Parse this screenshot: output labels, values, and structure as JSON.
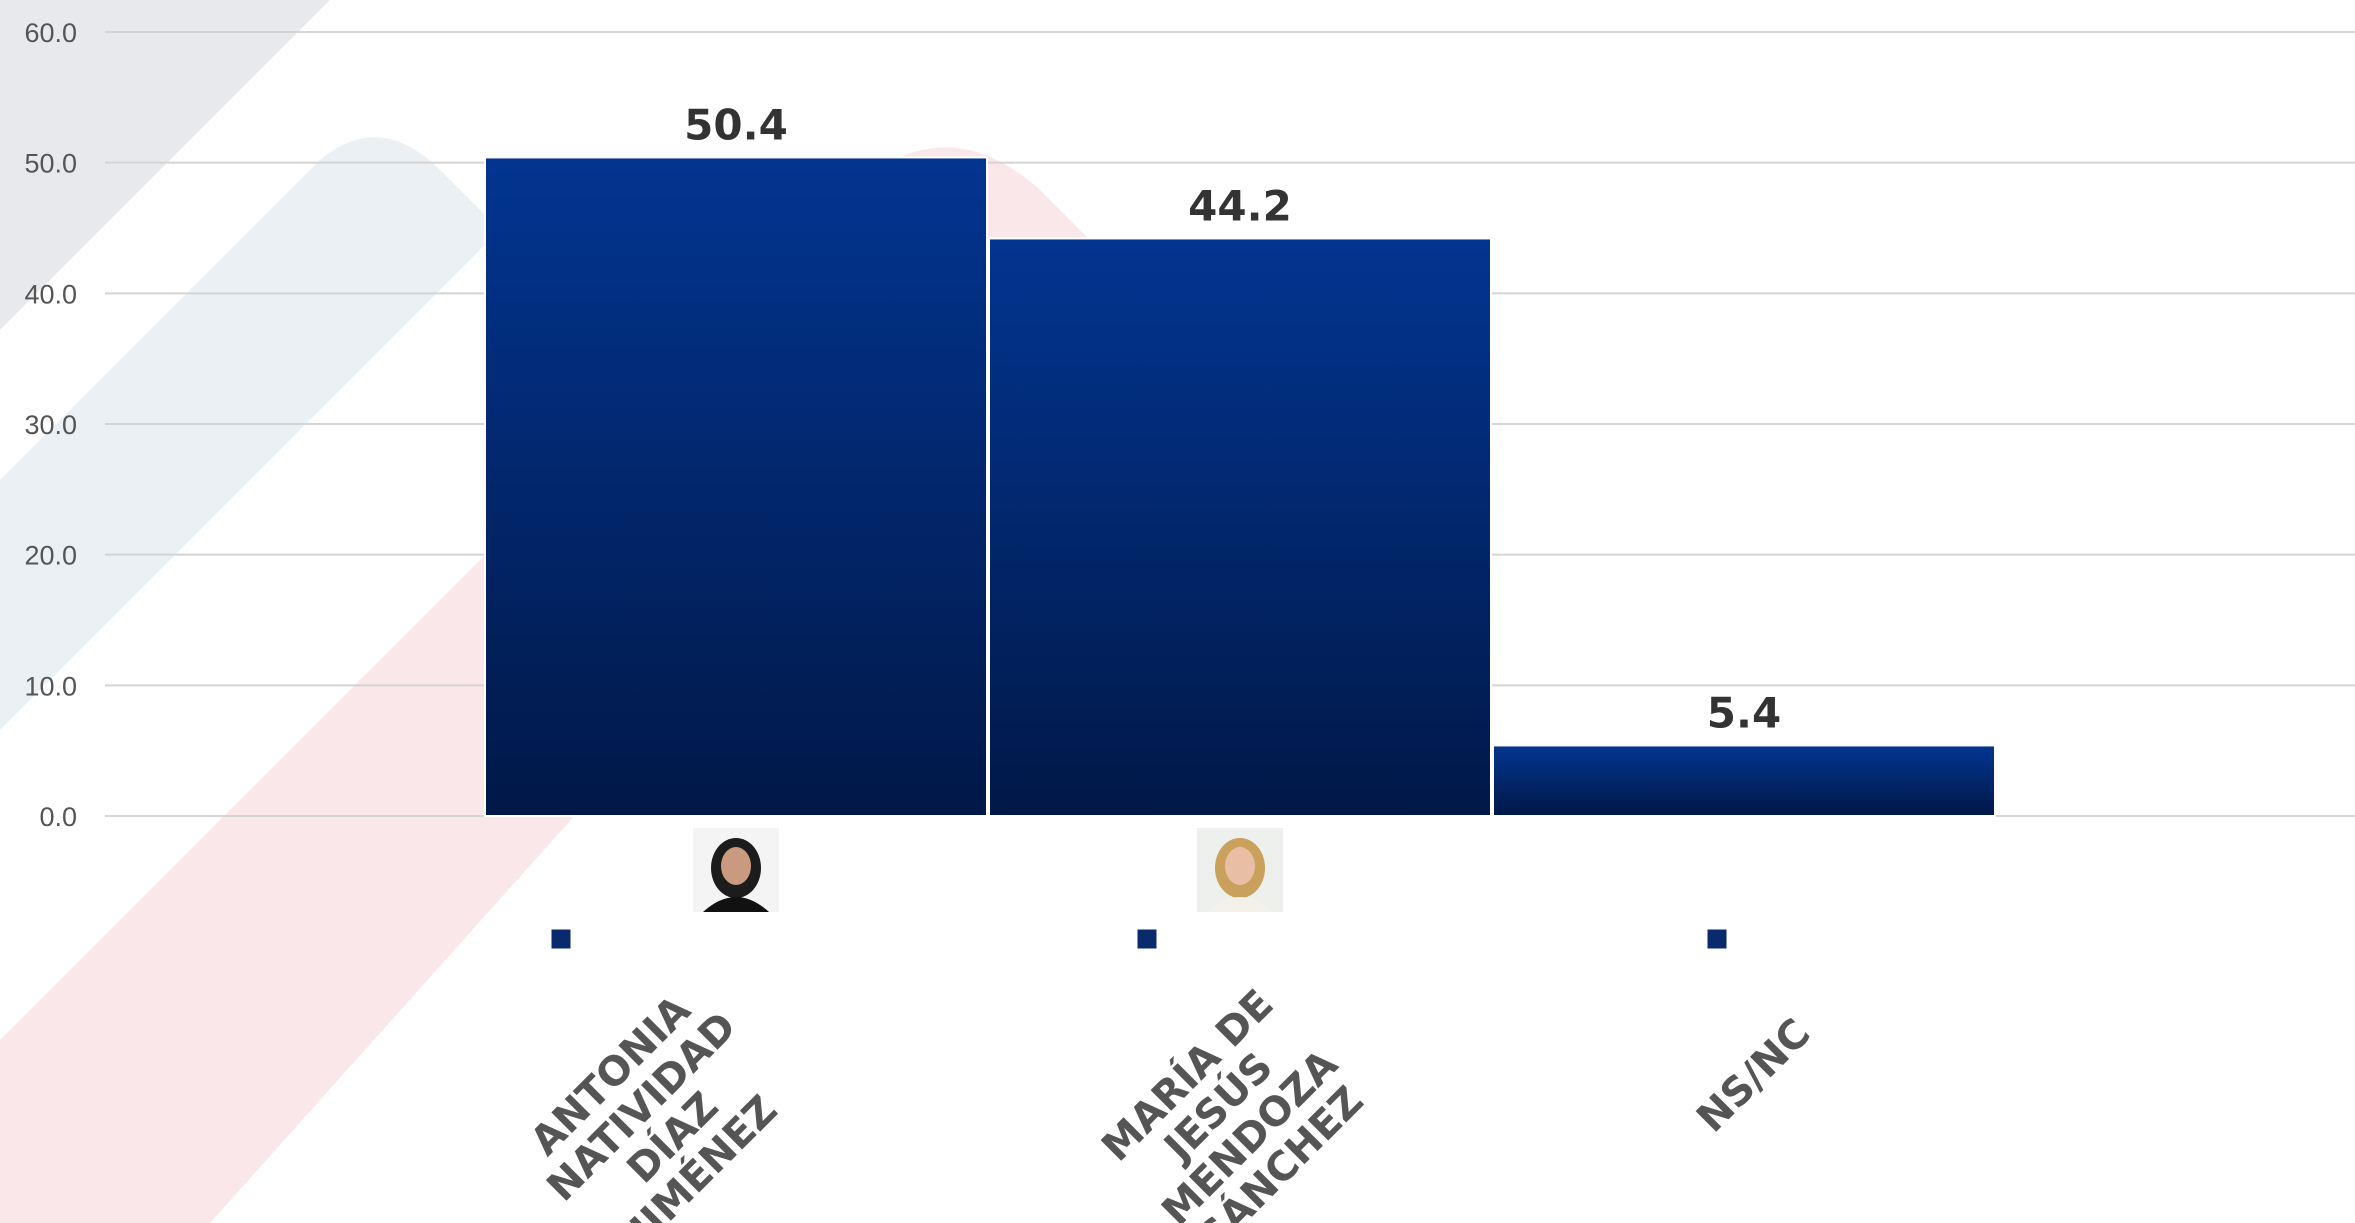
{
  "chart_data": {
    "type": "bar",
    "categories": [
      [
        "ANTONIA",
        "NATIVIDAD",
        "DÍAZ",
        "JIMÉNEZ"
      ],
      [
        "MARÍA DE",
        "JESÚS",
        "MENDOZA",
        "SÁNCHEZ"
      ],
      [
        "NS/NC"
      ]
    ],
    "values": [
      50.4,
      44.2,
      5.4
    ],
    "value_labels": [
      "50.4",
      "44.2",
      "5.4"
    ],
    "candidate_photos": [
      true,
      true,
      false
    ],
    "ylim": [
      0,
      60
    ],
    "yticks": [
      0,
      10,
      20,
      30,
      40,
      50,
      60
    ],
    "ytick_labels": [
      "0.0",
      "10.0",
      "20.0",
      "30.0",
      "40.0",
      "50.0",
      "60.0"
    ],
    "grid": true,
    "colors": {
      "bar_top": "#023591",
      "bar_bottom": "#011847",
      "legend_marker": "#0a2a6e",
      "grid": "#d4d4d4"
    }
  }
}
